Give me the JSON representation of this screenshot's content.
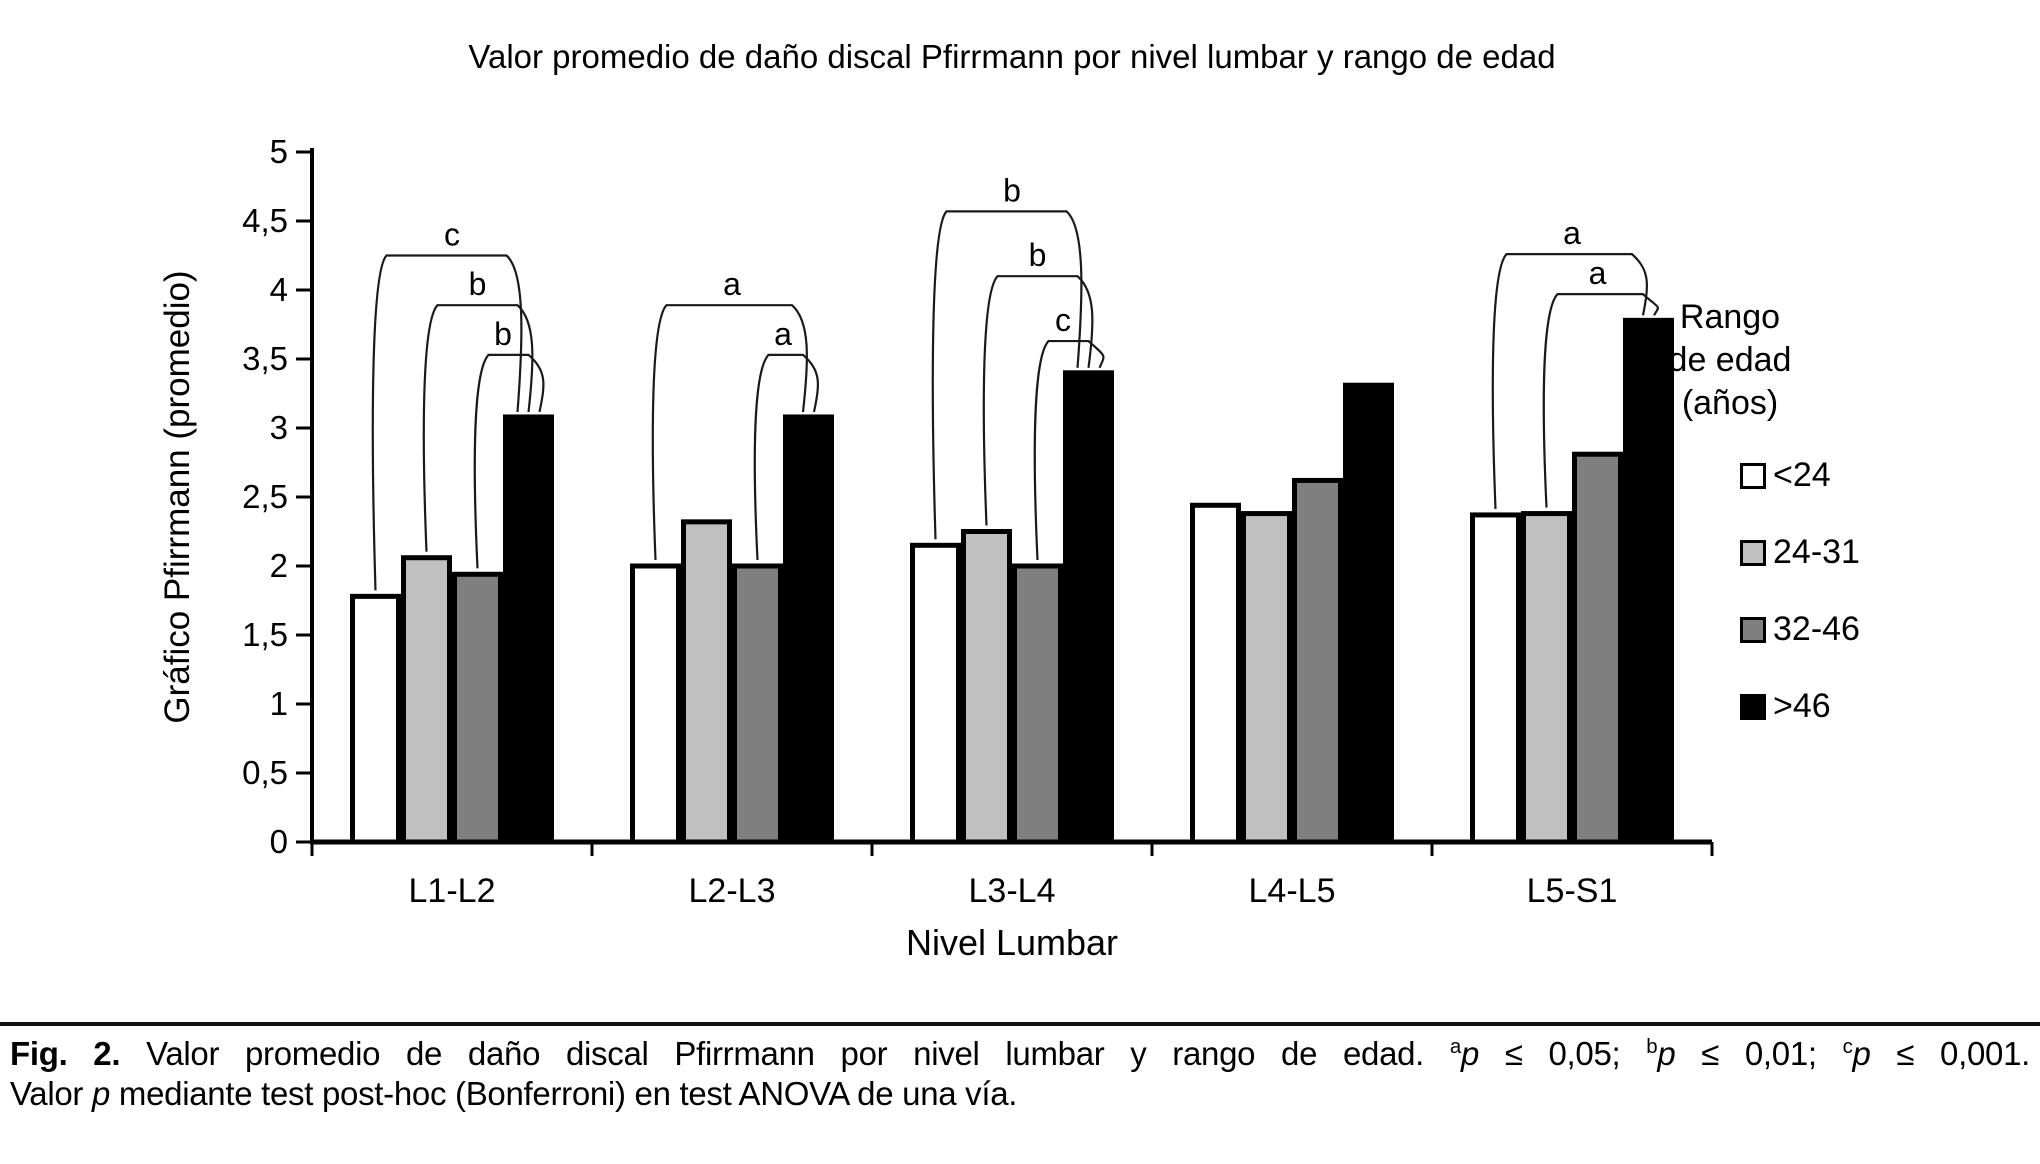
{
  "chart_data": {
    "type": "bar",
    "title": "Valor promedio de daño discal Pfirrmann por nivel lumbar y rango de edad",
    "xlabel": "Nivel Lumbar",
    "ylabel": "Gráfico Pfirrmann (promedio)",
    "ylim": [
      0,
      5
    ],
    "ytick_step": 0.5,
    "decimal_comma": true,
    "grid": false,
    "categories": [
      "L1-L2",
      "L2-L3",
      "L3-L4",
      "L4-L5",
      "L5-S1"
    ],
    "series": [
      {
        "name": "<24",
        "color": "#FFFFFF",
        "values": [
          1.78,
          2.0,
          2.15,
          2.44,
          2.37
        ]
      },
      {
        "name": "24-31",
        "color": "#C0C0C0",
        "values": [
          2.06,
          2.32,
          2.25,
          2.38,
          2.38
        ]
      },
      {
        "name": "32-46",
        "color": "#7F7F7F",
        "values": [
          1.94,
          2.0,
          2.0,
          2.62,
          2.81
        ]
      },
      {
        "name": ">46",
        "color": "#000000",
        "values": [
          3.08,
          3.08,
          3.4,
          3.31,
          3.78
        ]
      }
    ],
    "significance_brackets": [
      {
        "group": 0,
        "from_series": 0,
        "to_series": 3,
        "label": "c",
        "height": 4.25
      },
      {
        "group": 0,
        "from_series": 1,
        "to_series": 3,
        "label": "b",
        "height": 3.89
      },
      {
        "group": 0,
        "from_series": 2,
        "to_series": 3,
        "label": "b",
        "height": 3.53
      },
      {
        "group": 1,
        "from_series": 0,
        "to_series": 3,
        "label": "a",
        "height": 3.89
      },
      {
        "group": 1,
        "from_series": 2,
        "to_series": 3,
        "label": "a",
        "height": 3.53
      },
      {
        "group": 2,
        "from_series": 0,
        "to_series": 3,
        "label": "b",
        "height": 4.57
      },
      {
        "group": 2,
        "from_series": 1,
        "to_series": 3,
        "label": "b",
        "height": 4.1
      },
      {
        "group": 2,
        "from_series": 2,
        "to_series": 3,
        "label": "c",
        "height": 3.63
      },
      {
        "group": 4,
        "from_series": 0,
        "to_series": 3,
        "label": "a",
        "height": 4.26
      },
      {
        "group": 4,
        "from_series": 1,
        "to_series": 3,
        "label": "a",
        "height": 3.97
      }
    ],
    "legend": {
      "title_lines": [
        "Rango",
        "de edad",
        "(años)"
      ],
      "position": "right"
    }
  },
  "caption": {
    "fig_label": "Fig. 2.",
    "body": "Valor promedio de daño discal Pfirrmann por nivel lumbar y rango de edad.",
    "sig_markers": [
      {
        "sup": "a",
        "rest": " ≤ 0,05; "
      },
      {
        "sup": "b",
        "rest": " ≤ 0,01; "
      },
      {
        "sup": "c",
        "rest": " ≤ 0,001."
      }
    ],
    "line2": {
      "pre": "Valor ",
      "italic": "p",
      "post": " mediante test post-hoc (Bonferroni) en test ANOVA de una vía."
    }
  },
  "colors": {
    "axis": "#000000",
    "bracket": "#1a1a1a",
    "background": "#ffffff"
  }
}
